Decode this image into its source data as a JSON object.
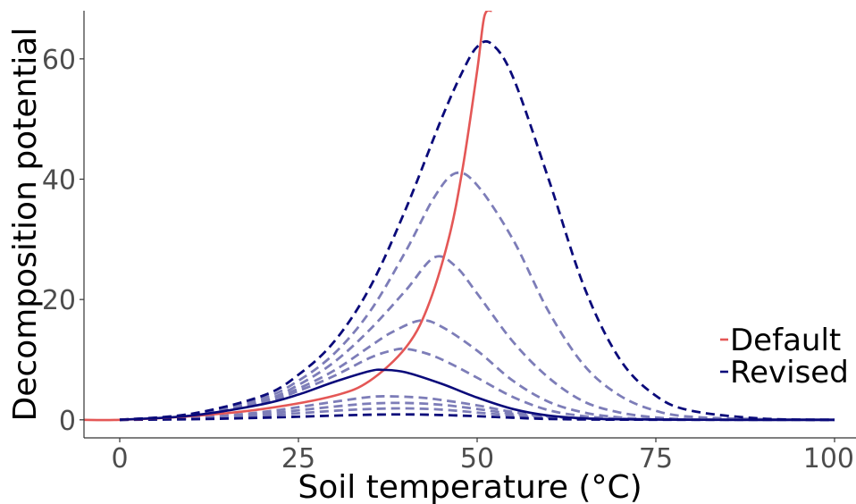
{
  "chart_data": {
    "type": "line",
    "xlabel": "Soil temperature (°C)",
    "ylabel": "Decomposition potential",
    "xlim": [
      -5,
      103
    ],
    "ylim": [
      -3,
      68
    ],
    "x_ticks": [
      0,
      25,
      50,
      75,
      100
    ],
    "x_tick_labels": [
      "0",
      "25",
      "50",
      "75",
      "100"
    ],
    "y_ticks": [
      0,
      20,
      40,
      60
    ],
    "y_tick_labels": [
      "0",
      "20",
      "40",
      "60"
    ],
    "grid": false,
    "legend": {
      "position": "right",
      "entries": [
        {
          "label": "Default",
          "color": "#e45756"
        },
        {
          "label": "Revised",
          "color": "#0a0a7a"
        }
      ]
    },
    "series": [
      {
        "name": "Default",
        "color": "#e45756",
        "style": "solid",
        "x": [
          -5,
          0,
          10,
          20,
          30,
          35,
          40,
          43,
          46,
          48,
          50,
          51,
          52
        ],
        "y": [
          0,
          0,
          0.6,
          1.8,
          4.0,
          6.5,
          12.0,
          18.5,
          30.0,
          42.0,
          58.0,
          67.0,
          68.0
        ]
      },
      {
        "name": "Revised",
        "color": "#0a0a7a",
        "style": "solid",
        "x": [
          0,
          10,
          20,
          25,
          30,
          35,
          37,
          40,
          45,
          50,
          55,
          60,
          65,
          70,
          80,
          100
        ],
        "y": [
          0,
          0.7,
          2.6,
          4.2,
          6.3,
          8.1,
          8.3,
          7.9,
          6.0,
          3.7,
          1.8,
          0.7,
          0.25,
          0.08,
          0.01,
          0
        ]
      },
      {
        "color": "#0a0a7a",
        "style": "dashed",
        "x": [
          0,
          10,
          20,
          25,
          30,
          35,
          40,
          45,
          48,
          50,
          52,
          55,
          60,
          65,
          70,
          75,
          80,
          90,
          100
        ],
        "y": [
          0,
          1.0,
          4.0,
          7.5,
          13.0,
          22.0,
          35.0,
          50.0,
          58.0,
          62.0,
          62.5,
          57.0,
          40.0,
          22.0,
          10.0,
          4.0,
          1.5,
          0.2,
          0
        ]
      },
      {
        "color": "#7d7db8",
        "style": "dashed",
        "x": [
          0,
          10,
          20,
          25,
          30,
          35,
          40,
          44,
          47,
          50,
          55,
          60,
          65,
          70,
          75,
          80,
          90,
          100
        ],
        "y": [
          0,
          0.9,
          3.6,
          6.5,
          11.0,
          18.0,
          28.0,
          37.0,
          41.0,
          39.0,
          30.0,
          18.0,
          9.0,
          4.0,
          1.5,
          0.5,
          0.1,
          0
        ]
      },
      {
        "color": "#7d7db8",
        "style": "dashed",
        "x": [
          0,
          10,
          20,
          25,
          30,
          35,
          40,
          44,
          47,
          50,
          55,
          60,
          65,
          70,
          75,
          80,
          90,
          100
        ],
        "y": [
          0,
          0.8,
          3.2,
          5.8,
          9.6,
          15.0,
          21.5,
          27.0,
          25.5,
          21.0,
          13.0,
          7.0,
          3.0,
          1.2,
          0.4,
          0.1,
          0.02,
          0
        ]
      },
      {
        "color": "#7d7db8",
        "style": "dashed",
        "x": [
          0,
          10,
          20,
          25,
          30,
          35,
          38,
          42,
          45,
          50,
          55,
          60,
          65,
          70,
          75,
          80,
          100
        ],
        "y": [
          0,
          0.8,
          3.0,
          5.2,
          8.2,
          12.2,
          14.5,
          16.5,
          15.5,
          11.5,
          6.5,
          3.0,
          1.2,
          0.4,
          0.1,
          0.03,
          0
        ]
      },
      {
        "color": "#7d7db8",
        "style": "dashed",
        "x": [
          0,
          10,
          20,
          25,
          30,
          35,
          38,
          40,
          43,
          46,
          50,
          55,
          60,
          65,
          70,
          80,
          100
        ],
        "y": [
          0,
          0.7,
          2.8,
          4.8,
          7.3,
          10.3,
          11.5,
          11.8,
          11.0,
          9.5,
          7.0,
          3.8,
          1.6,
          0.6,
          0.2,
          0.02,
          0
        ]
      },
      {
        "color": "#7d7db8",
        "style": "dashed",
        "x": [
          0,
          10,
          20,
          30,
          35,
          38,
          42,
          45,
          50,
          55,
          60,
          70,
          100
        ],
        "y": [
          0,
          0.3,
          1.3,
          3.0,
          3.8,
          3.9,
          3.7,
          3.3,
          2.4,
          1.3,
          0.6,
          0.1,
          0
        ]
      },
      {
        "color": "#7d7db8",
        "style": "dashed",
        "x": [
          0,
          10,
          20,
          30,
          35,
          40,
          45,
          50,
          55,
          60,
          70,
          100
        ],
        "y": [
          0,
          0.25,
          1.0,
          2.2,
          2.7,
          2.8,
          2.5,
          1.8,
          1.0,
          0.5,
          0.1,
          0
        ]
      },
      {
        "color": "#7d7db8",
        "style": "dashed",
        "x": [
          0,
          10,
          20,
          30,
          35,
          40,
          45,
          50,
          55,
          60,
          70,
          100
        ],
        "y": [
          0,
          0.2,
          0.7,
          1.5,
          1.8,
          1.9,
          1.7,
          1.2,
          0.7,
          0.3,
          0.05,
          0
        ]
      },
      {
        "color": "#0a0a7a",
        "style": "dashed",
        "x": [
          0,
          10,
          20,
          30,
          35,
          40,
          45,
          50,
          55,
          60,
          70,
          100
        ],
        "y": [
          0,
          0.1,
          0.35,
          0.7,
          0.85,
          0.9,
          0.8,
          0.6,
          0.35,
          0.15,
          0.03,
          0
        ]
      }
    ]
  }
}
